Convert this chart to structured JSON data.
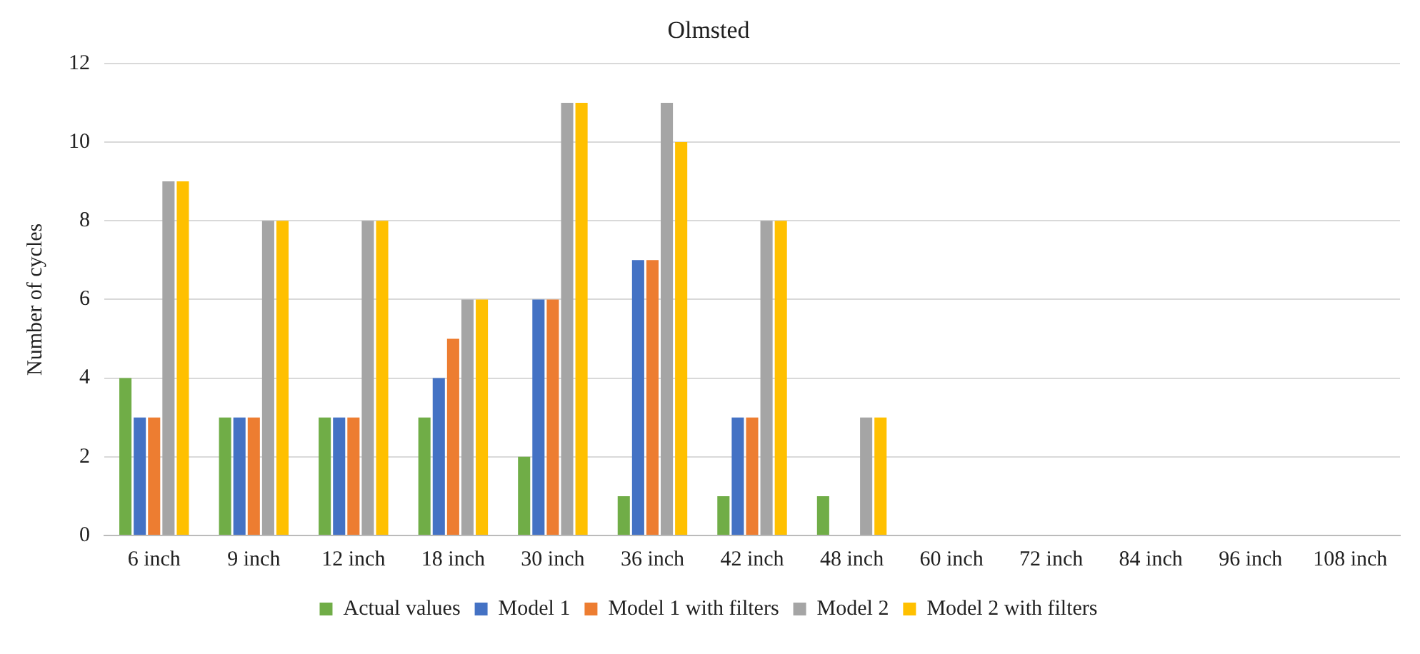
{
  "chart_data": {
    "type": "bar",
    "title": "Olmsted",
    "ylabel": "Number of cycles",
    "categories": [
      "6 inch",
      "9 inch",
      "12 inch",
      "18 inch",
      "30 inch",
      "36 inch",
      "42 inch",
      "48 inch",
      "60 inch",
      "72 inch",
      "84 inch",
      "96 inch",
      "108 inch"
    ],
    "series": [
      {
        "name": "Actual values",
        "color": "#70ad47",
        "values": [
          4,
          3,
          3,
          3,
          2,
          1,
          1,
          1,
          0,
          0,
          0,
          0,
          0
        ]
      },
      {
        "name": "Model 1",
        "color": "#4472c4",
        "values": [
          3,
          3,
          3,
          4,
          6,
          7,
          3,
          0,
          0,
          0,
          0,
          0,
          0
        ]
      },
      {
        "name": "Model 1 with filters",
        "color": "#ed7d31",
        "values": [
          3,
          3,
          3,
          5,
          6,
          7,
          3,
          0,
          0,
          0,
          0,
          0,
          0
        ]
      },
      {
        "name": "Model 2",
        "color": "#a5a5a5",
        "values": [
          9,
          8,
          8,
          6,
          11,
          11,
          8,
          3,
          0,
          0,
          0,
          0,
          0
        ]
      },
      {
        "name": "Model 2 with filters",
        "color": "#ffc000",
        "values": [
          9,
          8,
          8,
          6,
          11,
          10,
          8,
          3,
          0,
          0,
          0,
          0,
          0
        ]
      }
    ],
    "ylim": [
      0,
      12
    ],
    "yticks": [
      0,
      2,
      4,
      6,
      8,
      10,
      12
    ],
    "grid": "y",
    "legend": "bottom"
  }
}
